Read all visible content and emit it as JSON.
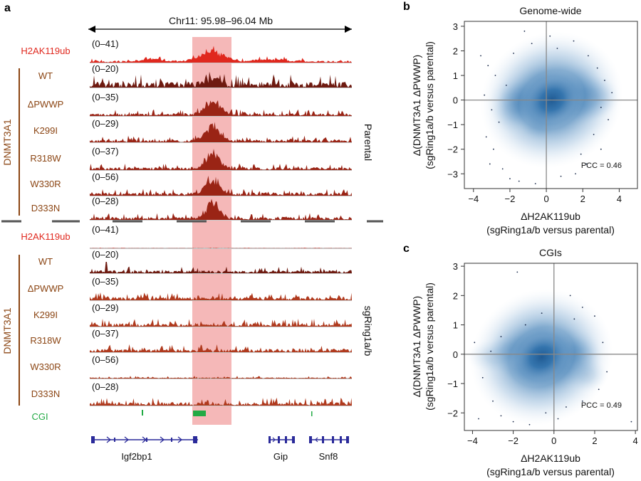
{
  "panel_a": {
    "label": "a",
    "region": "Chr11: 95.98–96.04 Mb",
    "parental_label": "Parental",
    "knockout_label": "sgRing1a/b",
    "group_label": "DNMT3A1",
    "cgi_label": "CGI",
    "parental_tracks": [
      {
        "name": "H2AK119ub",
        "range": "(0–41)"
      },
      {
        "name": "WT",
        "range": "(0–20)"
      },
      {
        "name": "ΔPWWP",
        "range": "(0–35)"
      },
      {
        "name": "K299I",
        "range": "(0–29)"
      },
      {
        "name": "R318W",
        "range": "(0–37)"
      },
      {
        "name": "W330R",
        "range": "(0–56)"
      },
      {
        "name": "D333N",
        "range": "(0–28)"
      }
    ],
    "knockout_tracks": [
      {
        "name": "H2AK119ub",
        "range": "(0–41)"
      },
      {
        "name": "WT",
        "range": "(0–20)"
      },
      {
        "name": "ΔPWWP",
        "range": "(0–35)"
      },
      {
        "name": "K299I",
        "range": "(0–29)"
      },
      {
        "name": "R318W",
        "range": "(0–37)"
      },
      {
        "name": "W330R",
        "range": "(0–56)"
      },
      {
        "name": "D333N",
        "range": "(0–28)"
      }
    ],
    "genes": [
      "Igf2bp1",
      "Gip",
      "Snf8"
    ],
    "colors": {
      "h2a": "#e0281e",
      "dnmt_parental": "#9a2415",
      "dnmt_wt": "#6e1a10",
      "dnmt_ko": "#b03a1e",
      "label_brown": "#8b4513",
      "cgi": "#22aa44",
      "gene": "#2a2a9a",
      "highlight": "#f2a0a0"
    }
  },
  "chart_data": [
    {
      "type": "scatter",
      "label": "b",
      "title": "Genome-wide",
      "xlabel_1": "ΔH2AK119ub",
      "xlabel_2": "(sgRing1a/b versus parental)",
      "ylabel_1": "Δ(DNMT3A1 ΔPWWP)",
      "ylabel_2": "(sgRing1a/b versus parental)",
      "xlim": [
        -4.5,
        5.0
      ],
      "ylim": [
        -3.6,
        3.2
      ],
      "xticks": [
        -4,
        -2,
        0,
        2,
        4
      ],
      "yticks": [
        -3,
        -2,
        -1,
        0,
        1,
        2,
        3
      ],
      "density_center": [
        0.3,
        0.0
      ],
      "correlation": 0.46,
      "annotation": "PCC = 0.46",
      "outliers": [
        [
          -3.6,
          1.8
        ],
        [
          -3.2,
          1.4
        ],
        [
          -2.8,
          1.0
        ],
        [
          -3.4,
          0.2
        ],
        [
          -3.0,
          -0.4
        ],
        [
          -2.6,
          -0.9
        ],
        [
          -3.3,
          -1.5
        ],
        [
          -2.9,
          -2.0
        ],
        [
          -3.1,
          -2.6
        ],
        [
          -2.4,
          -2.8
        ],
        [
          -2.0,
          -3.2
        ],
        [
          -1.5,
          -3.3
        ],
        [
          -1.2,
          2.8
        ],
        [
          -0.8,
          2.3
        ],
        [
          0.2,
          2.6
        ],
        [
          0.6,
          2.1
        ],
        [
          1.5,
          2.4
        ],
        [
          2.3,
          1.8
        ],
        [
          2.8,
          1.3
        ],
        [
          3.2,
          0.8
        ],
        [
          3.0,
          -0.3
        ],
        [
          3.4,
          -0.8
        ],
        [
          2.6,
          -1.4
        ],
        [
          3.0,
          -2.0
        ],
        [
          2.2,
          -2.6
        ],
        [
          1.6,
          -3.0
        ],
        [
          0.8,
          -3.1
        ],
        [
          -0.6,
          -3.4
        ],
        [
          -2.2,
          0.6
        ],
        [
          3.6,
          0.3
        ],
        [
          -1.8,
          1.9
        ],
        [
          1.9,
          -2.2
        ]
      ]
    },
    {
      "type": "scatter",
      "label": "c",
      "title": "CGIs",
      "xlabel_1": "ΔH2AK119ub",
      "xlabel_2": "(sgRing1a/b versus parental)",
      "ylabel_1": "Δ(DNMT3A1 ΔPWWP)",
      "ylabel_2": "(sgRing1a/b versus parental)",
      "xlim": [
        -4.4,
        4.1
      ],
      "ylim": [
        -2.6,
        3.1
      ],
      "xticks": [
        -4,
        -2,
        0,
        2,
        4
      ],
      "yticks": [
        -2,
        -1,
        0,
        1,
        2,
        3
      ],
      "density_center": [
        -0.6,
        -0.1
      ],
      "correlation": 0.49,
      "annotation": "PCC = 0.49",
      "outliers": [
        [
          -1.8,
          2.8
        ],
        [
          -3.9,
          0.4
        ],
        [
          -3.5,
          -0.8
        ],
        [
          -3.0,
          -1.6
        ],
        [
          -2.6,
          -2.1
        ],
        [
          -2.0,
          -2.3
        ],
        [
          -1.2,
          -2.4
        ],
        [
          -0.4,
          -2.0
        ],
        [
          0.6,
          -1.8
        ],
        [
          1.4,
          -1.6
        ],
        [
          2.2,
          -1.2
        ],
        [
          2.6,
          -0.6
        ],
        [
          2.4,
          0.4
        ],
        [
          2.0,
          1.3
        ],
        [
          1.4,
          1.6
        ],
        [
          0.8,
          2.0
        ],
        [
          -0.6,
          1.4
        ],
        [
          -1.4,
          1.0
        ],
        [
          -2.6,
          0.6
        ],
        [
          -3.1,
          0.1
        ],
        [
          3.8,
          -2.3
        ],
        [
          -3.7,
          -2.2
        ],
        [
          0.2,
          -2.2
        ],
        [
          1.0,
          1.2
        ]
      ]
    }
  ]
}
